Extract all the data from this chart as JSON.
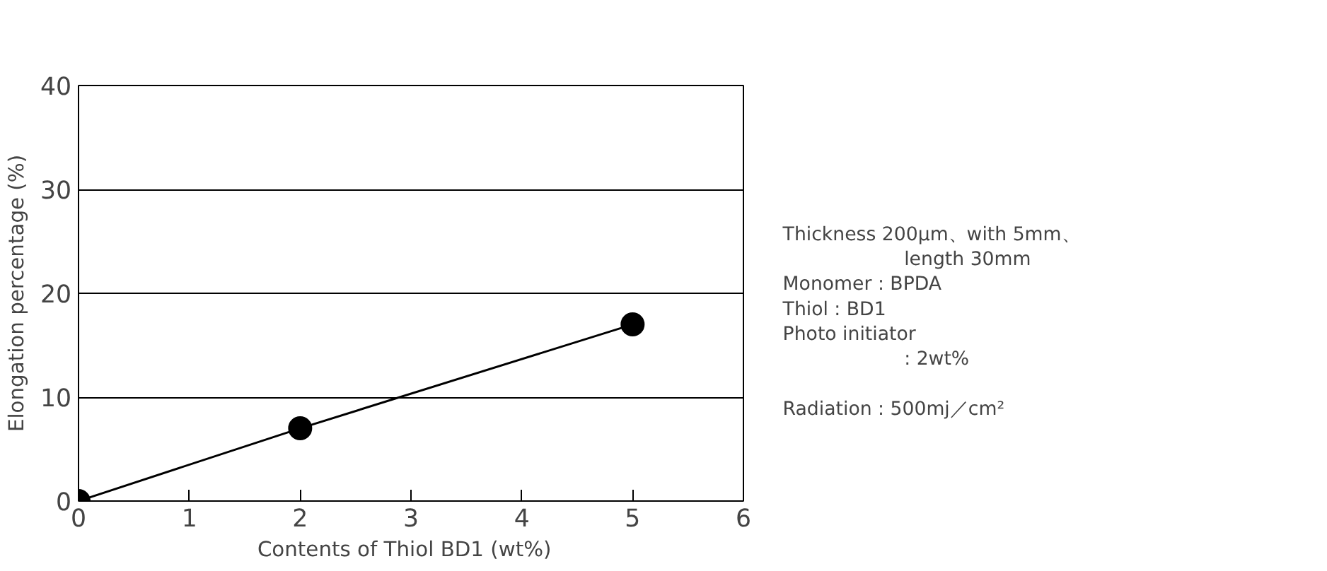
{
  "chart_data": {
    "type": "line",
    "xlabel": "Contents of  Thiol BD1  (wt%)",
    "ylabel": "Elongation percentage (%)",
    "x": [
      0,
      2,
      5
    ],
    "series": [
      {
        "color": "#000000",
        "values": [
          0,
          7,
          17
        ]
      }
    ],
    "xlim": [
      0,
      6
    ],
    "xticks": [
      0,
      1,
      2,
      3,
      4,
      5,
      6
    ],
    "ylim": [
      0,
      40
    ],
    "yticks": [
      0,
      10,
      20,
      30,
      40
    ],
    "grid": "y",
    "marker": "circle",
    "line_style": "solid",
    "annotations": [
      "Thickness   200μm、with  5mm、",
      "length  30mm",
      "Monomer   :  BPDA",
      "Thiol        :  BD1",
      "Photo initiator",
      ":  2wt%",
      "Radiation  :  500mj／cm²"
    ]
  }
}
